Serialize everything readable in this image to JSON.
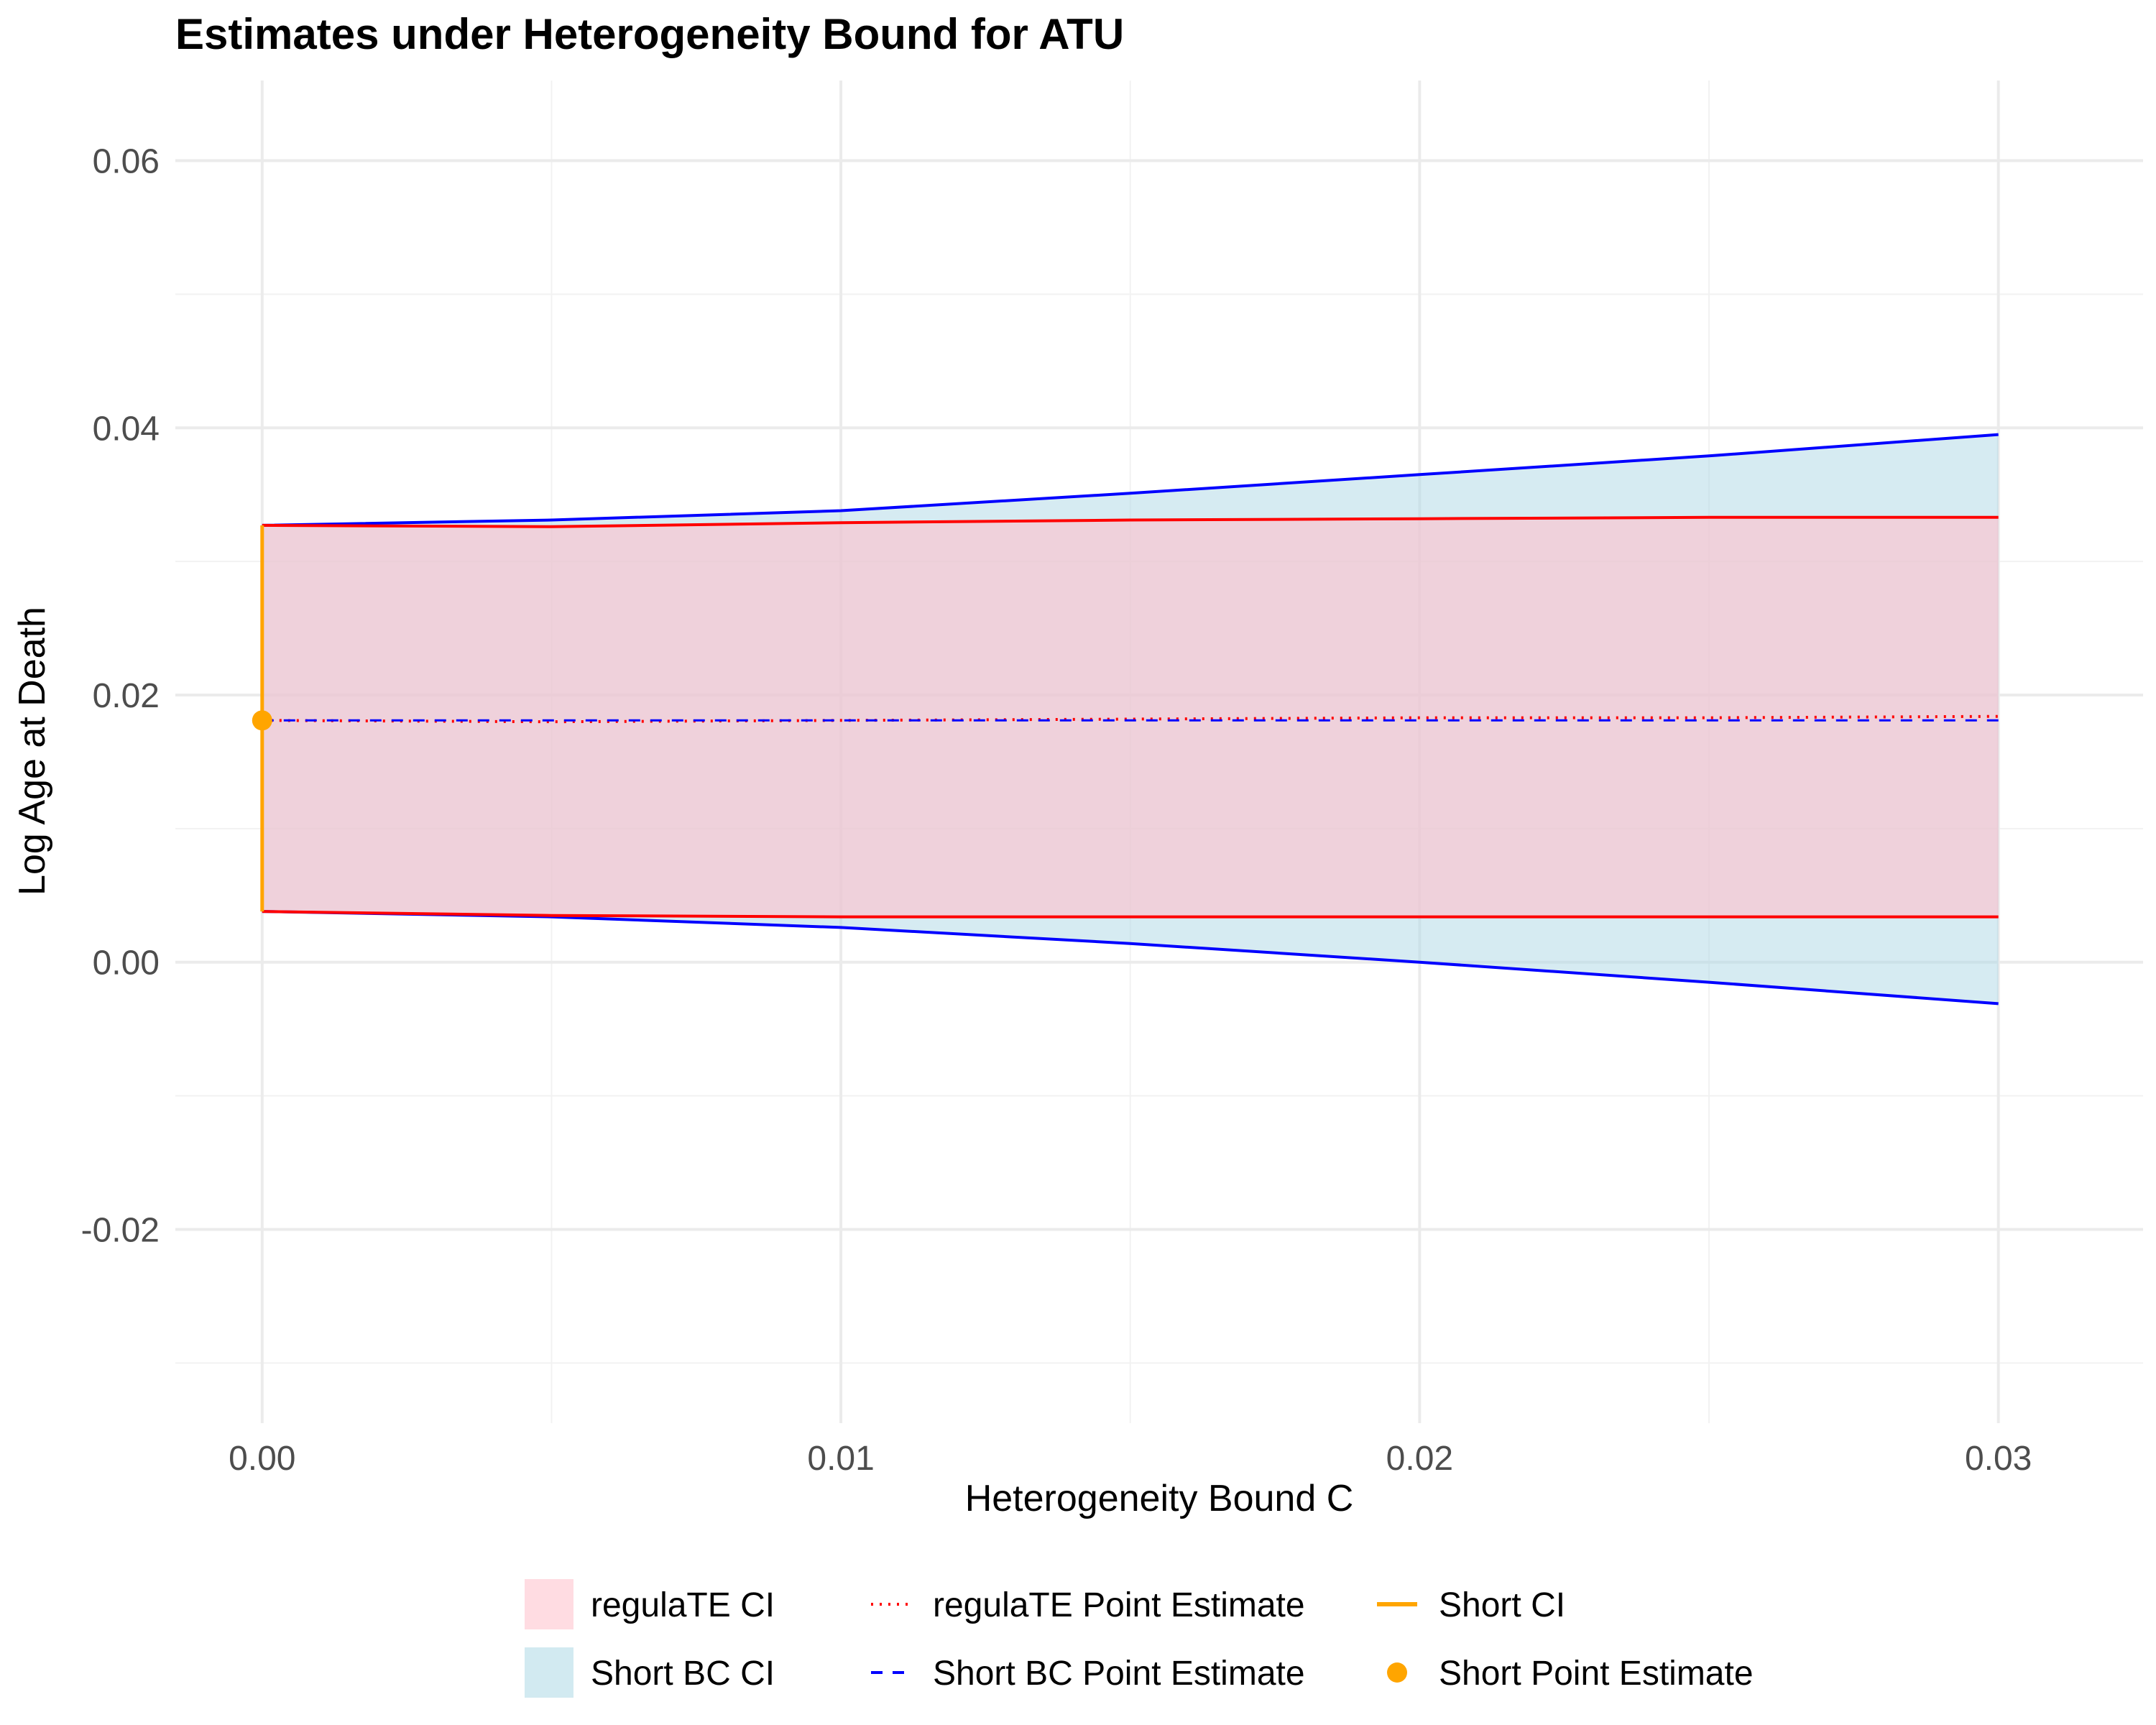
{
  "chart_data": {
    "type": "line",
    "title": "Estimates under Heterogeneity Bound for ATU",
    "xlabel": "Heterogeneity Bound C",
    "ylabel": "Log Age at Death",
    "xlim": [
      -0.0015,
      0.0325
    ],
    "ylim": [
      -0.0345,
      0.066
    ],
    "x_ticks": [
      0.0,
      0.01,
      0.02,
      0.03
    ],
    "x_tick_labels": [
      "0.00",
      "0.01",
      "0.02",
      "0.03"
    ],
    "y_ticks": [
      -0.02,
      0.0,
      0.02,
      0.04,
      0.06
    ],
    "y_tick_labels": [
      "-0.02",
      "0.00",
      "0.02",
      "0.04",
      "0.06"
    ],
    "grid": true,
    "legend_position": "bottom",
    "x": [
      0.0,
      0.005,
      0.01,
      0.015,
      0.02,
      0.025,
      0.03
    ],
    "series": [
      {
        "name": "regulaTE CI",
        "kind": "ribbon",
        "color": "#ffc0cb",
        "lower": [
          0.0038,
          0.0035,
          0.0034,
          0.0034,
          0.0034,
          0.0034,
          0.0034
        ],
        "upper": [
          0.0327,
          0.0326,
          0.0329,
          0.0331,
          0.0332,
          0.0333,
          0.0333
        ]
      },
      {
        "name": "Short BC CI",
        "kind": "ribbon",
        "color": "#add8e6",
        "lower": [
          0.0038,
          0.0034,
          0.0026,
          0.0014,
          0.0,
          -0.0015,
          -0.0031
        ],
        "upper": [
          0.0327,
          0.0331,
          0.0338,
          0.0351,
          0.0365,
          0.0379,
          0.0395
        ]
      },
      {
        "name": "regulaTE Point Estimate",
        "kind": "line",
        "color": "#ff0000",
        "dash": "dotted",
        "values": [
          0.0181,
          0.018,
          0.0181,
          0.0182,
          0.0183,
          0.0183,
          0.0184
        ]
      },
      {
        "name": "Short BC Point Estimate",
        "kind": "line",
        "color": "#0000ff",
        "dash": "dashed",
        "values": [
          0.0181,
          0.0181,
          0.0181,
          0.0181,
          0.0181,
          0.0181,
          0.0181
        ]
      },
      {
        "name": "Short CI",
        "kind": "errorbar",
        "color": "#ffa500",
        "x": 0.0,
        "lower": 0.0038,
        "upper": 0.0327
      },
      {
        "name": "Short Point Estimate",
        "kind": "point",
        "color": "#ffa500",
        "x": 0.0,
        "y": 0.0181
      }
    ]
  },
  "legend": {
    "items": [
      {
        "label": "regulaTE CI",
        "key": "fill",
        "color": "#ffc0cb"
      },
      {
        "label": "Short BC CI",
        "key": "fill",
        "color": "#add8e6"
      },
      {
        "label": "regulaTE Point Estimate",
        "key": "dotted",
        "color": "#ff0000"
      },
      {
        "label": "Short BC Point Estimate",
        "key": "dashed",
        "color": "#0000ff"
      },
      {
        "label": "Short CI",
        "key": "solid",
        "color": "#ffa500"
      },
      {
        "label": "Short Point Estimate",
        "key": "point",
        "color": "#ffa500"
      }
    ]
  }
}
